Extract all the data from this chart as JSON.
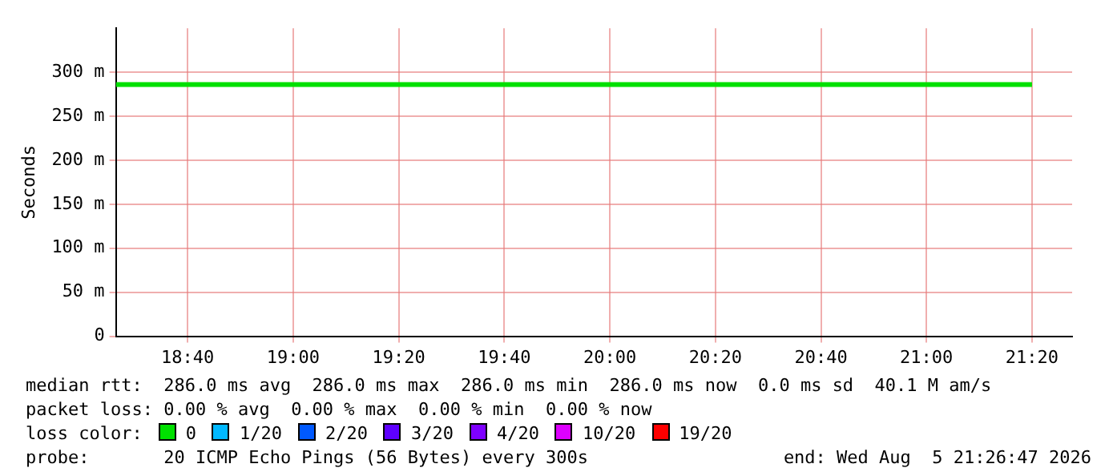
{
  "chart_data": {
    "type": "line",
    "ylabel": "Seconds",
    "x": [
      18.44,
      21.3333
    ],
    "series": [
      {
        "name": "0",
        "color": "#00e000",
        "values": [
          286,
          286
        ]
      }
    ],
    "xlim": [
      18.44,
      21.46
    ],
    "xticks": [
      {
        "value": 18.6667,
        "label": "18:40"
      },
      {
        "value": 19,
        "label": "19:00"
      },
      {
        "value": 19.3333,
        "label": "19:20"
      },
      {
        "value": 19.6667,
        "label": "19:40"
      },
      {
        "value": 20,
        "label": "20:00"
      },
      {
        "value": 20.3333,
        "label": "20:20"
      },
      {
        "value": 20.6667,
        "label": "20:40"
      },
      {
        "value": 21,
        "label": "21:00"
      },
      {
        "value": 21.3333,
        "label": "21:20"
      }
    ],
    "ylim": [
      0,
      350
    ],
    "yticks": [
      0,
      {
        "value": 50,
        "label": "50 m"
      },
      {
        "value": 100,
        "label": "100 m"
      },
      {
        "value": 150,
        "label": "150 m"
      },
      {
        "value": 200,
        "label": "200 m"
      },
      {
        "value": 250,
        "label": "250 m"
      },
      {
        "value": 300,
        "label": "300 m"
      }
    ],
    "grid": true,
    "legend": "bottom",
    "marker": "none",
    "line_style": "solid",
    "annotations": [
      "median rtt:  286.0 ms avg  286.0 ms max  286.0 ms min  286.0 ms now  0.0 ms sd  40.1 M am/s",
      "packet loss: 0.00 % avg  0.00 % max  0.00 % min  0.00 % now",
      "loss color:",
      "1/20",
      "2/20",
      "3/20",
      "4/20",
      "10/20",
      "19/20",
      "probe:       20 ICMP Echo Pings (56 Bytes) every 300s",
      "end: Wed Aug  5 21:26:47 2026"
    ]
  }
}
